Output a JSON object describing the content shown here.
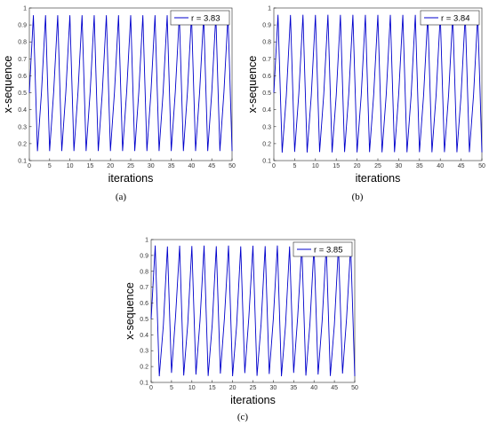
{
  "panels": [
    {
      "id": "a",
      "caption": "(a)",
      "xlabel": "iterations",
      "ylabel": "x-sequence",
      "legend": "r = 3.83"
    },
    {
      "id": "b",
      "caption": "(b)",
      "xlabel": "iterations",
      "ylabel": "x-sequence",
      "legend": "r = 3.84"
    },
    {
      "id": "c",
      "caption": "(c)",
      "xlabel": "iterations",
      "ylabel": "x-sequence",
      "legend": "r = 3.85"
    }
  ],
  "chart_data": [
    {
      "type": "line",
      "xlabel": "iterations",
      "ylabel": "x-sequence",
      "xlim": [
        0,
        50
      ],
      "ylim": [
        0.1,
        1
      ],
      "xticks": [
        0,
        5,
        10,
        15,
        20,
        25,
        30,
        35,
        40,
        45,
        50
      ],
      "yticks": [
        0.1,
        0.2,
        0.3,
        0.4,
        0.5,
        0.6,
        0.7,
        0.8,
        0.9,
        1
      ],
      "grid": false,
      "legend_position": "top-right",
      "series": [
        {
          "name": "r = 3.83",
          "color": "#0000cc",
          "r": 3.83,
          "x0": 0.5,
          "iterations": 50
        }
      ]
    },
    {
      "type": "line",
      "xlabel": "iterations",
      "ylabel": "x-sequence",
      "xlim": [
        0,
        50
      ],
      "ylim": [
        0.1,
        1
      ],
      "xticks": [
        0,
        5,
        10,
        15,
        20,
        25,
        30,
        35,
        40,
        45,
        50
      ],
      "yticks": [
        0.1,
        0.2,
        0.3,
        0.4,
        0.5,
        0.6,
        0.7,
        0.8,
        0.9,
        1
      ],
      "grid": false,
      "legend_position": "top-right",
      "series": [
        {
          "name": "r = 3.84",
          "color": "#0000cc",
          "r": 3.84,
          "x0": 0.5,
          "iterations": 50
        }
      ]
    },
    {
      "type": "line",
      "xlabel": "iterations",
      "ylabel": "x-sequence",
      "xlim": [
        0,
        50
      ],
      "ylim": [
        0.1,
        1
      ],
      "xticks": [
        0,
        5,
        10,
        15,
        20,
        25,
        30,
        35,
        40,
        45,
        50
      ],
      "yticks": [
        0.1,
        0.2,
        0.3,
        0.4,
        0.5,
        0.6,
        0.7,
        0.8,
        0.9,
        1
      ],
      "grid": false,
      "legend_position": "top-right",
      "series": [
        {
          "name": "r = 3.85",
          "color": "#0000cc",
          "r": 3.85,
          "x0": 0.5,
          "iterations": 50
        }
      ]
    }
  ]
}
